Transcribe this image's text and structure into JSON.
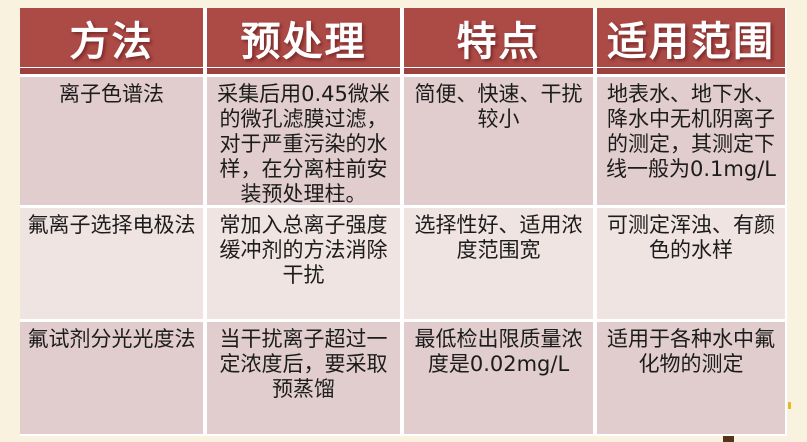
{
  "slide": {
    "background_color": "#F9F2DE",
    "table": {
      "headers": [
        "方法",
        "预处理",
        "特点",
        "适用范围"
      ],
      "rows": [
        [
          "离子色谱法",
          "采集后用0.45微米的微孔滤膜过滤，对于严重污染的水样，在分离柱前安装预处理柱。",
          "简便、快速、干扰较小",
          "地表水、地下水、降水中无机阴离子的测定，其测定下线一般为0.1mg/L"
        ],
        [
          "氟离子选择电极法",
          "常加入总离子强度缓冲剂的方法消除干扰",
          "选择性好、适用浓度范围宽",
          "可测定浑浊、有颜色的水样"
        ],
        [
          "氟试剂分光光度法",
          "当干扰离子超过一定浓度后，要采取预蒸馏",
          "最低检出限质量浓度是0.02mg/L",
          "适用于各种水中氟化物的测定"
        ]
      ],
      "colors": {
        "header_bg": "#AC4A46",
        "header_accent": "#9C413D",
        "header_text": "#FFFFFF",
        "row_odd_bg": "#E1CDCD",
        "row_even_bg": "#EFE4E1",
        "body_text": "#1C1C1C",
        "gap": "#FFFFFF"
      }
    },
    "decorations": {
      "brown_fragment_color": "#533617",
      "yellow_tick_color": "#E8B82A"
    }
  }
}
